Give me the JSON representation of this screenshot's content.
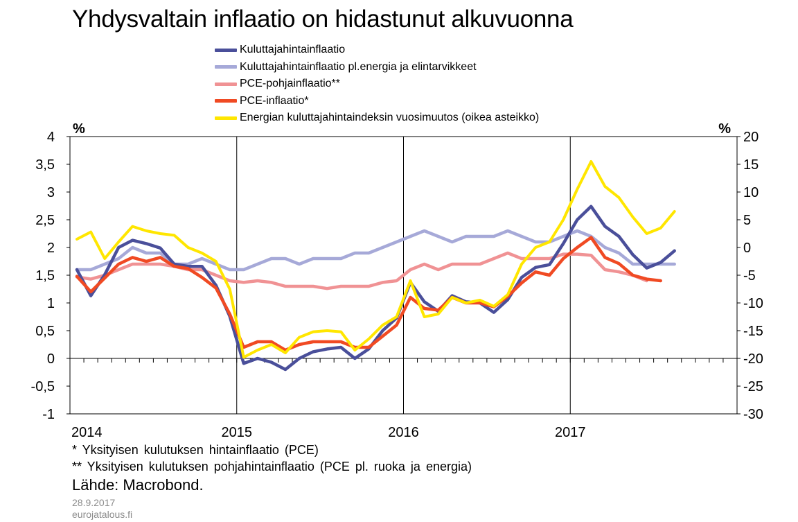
{
  "chart_data": {
    "type": "line",
    "title": "Yhdysvaltain inflaatio on hidastunut alkuvuonna",
    "left_unit": "%",
    "right_unit": "%",
    "left_ylim": [
      -1,
      4
    ],
    "right_ylim": [
      -30,
      20
    ],
    "left_yticks": [
      "-1",
      "-0,5",
      "0",
      "0,5",
      "1",
      "1,5",
      "2",
      "2,5",
      "3",
      "3,5",
      "4"
    ],
    "right_yticks": [
      "-30",
      "-25",
      "-20",
      "-15",
      "-10",
      "-5",
      "0",
      "5",
      "10",
      "15",
      "20"
    ],
    "x_labels": [
      "2014",
      "2015",
      "2016",
      "2017"
    ],
    "x_range": [
      "2014-01",
      "2017-12"
    ],
    "grid": "vertical at year boundaries",
    "series": [
      {
        "name": "Kuluttajahintainflaatio",
        "color": "#4a4f9a",
        "axis": "left",
        "start": "2014-01",
        "values": [
          1.6,
          1.13,
          1.51,
          2.0,
          2.13,
          2.07,
          1.99,
          1.7,
          1.66,
          1.66,
          1.32,
          0.76,
          -0.09,
          0.0,
          -0.07,
          -0.2,
          0.0,
          0.12,
          0.17,
          0.2,
          0.0,
          0.17,
          0.5,
          0.73,
          1.37,
          1.02,
          0.85,
          1.13,
          1.02,
          1.0,
          0.83,
          1.06,
          1.46,
          1.64,
          1.69,
          2.07,
          2.5,
          2.74,
          2.38,
          2.2,
          1.87,
          1.63,
          1.73,
          1.94
        ]
      },
      {
        "name": "Kuluttajahintainflaatio pl.energia ja elintarvikkeet",
        "color": "#a6a9d8",
        "axis": "left",
        "start": "2014-01",
        "values": [
          1.6,
          1.6,
          1.7,
          1.8,
          2.0,
          1.9,
          1.9,
          1.7,
          1.7,
          1.8,
          1.7,
          1.6,
          1.6,
          1.7,
          1.8,
          1.8,
          1.7,
          1.8,
          1.8,
          1.8,
          1.9,
          1.9,
          2.0,
          2.1,
          2.2,
          2.3,
          2.2,
          2.1,
          2.2,
          2.2,
          2.2,
          2.3,
          2.2,
          2.1,
          2.1,
          2.2,
          2.3,
          2.2,
          2.0,
          1.9,
          1.7,
          1.7,
          1.7,
          1.7
        ]
      },
      {
        "name": "PCE-pohjainflaatio**",
        "color": "#f09294",
        "axis": "left",
        "start": "2014-01",
        "values": [
          1.47,
          1.43,
          1.5,
          1.6,
          1.7,
          1.7,
          1.7,
          1.66,
          1.6,
          1.6,
          1.5,
          1.4,
          1.37,
          1.4,
          1.37,
          1.3,
          1.3,
          1.3,
          1.26,
          1.3,
          1.3,
          1.3,
          1.37,
          1.4,
          1.6,
          1.7,
          1.6,
          1.7,
          1.7,
          1.7,
          1.8,
          1.9,
          1.8,
          1.8,
          1.8,
          1.88,
          1.88,
          1.86,
          1.6,
          1.56,
          1.5,
          1.4
        ]
      },
      {
        "name": "PCE-inflaatio*",
        "color": "#f04a23",
        "axis": "left",
        "start": "2014-01",
        "values": [
          1.48,
          1.2,
          1.45,
          1.7,
          1.82,
          1.75,
          1.82,
          1.66,
          1.62,
          1.46,
          1.27,
          0.8,
          0.2,
          0.3,
          0.3,
          0.15,
          0.25,
          0.3,
          0.3,
          0.3,
          0.2,
          0.2,
          0.4,
          0.6,
          1.1,
          0.9,
          0.87,
          1.1,
          1.0,
          1.0,
          0.93,
          1.12,
          1.36,
          1.56,
          1.5,
          1.8,
          2.0,
          2.18,
          1.82,
          1.71,
          1.5,
          1.43,
          1.4
        ]
      },
      {
        "name": "Energian kuluttajahintaindeksin vuosimuutos (oikea asteikko)",
        "color": "#ffe600",
        "axis": "right",
        "start": "2014-01",
        "values": [
          1.5,
          2.8,
          -2.0,
          1.0,
          3.8,
          3.0,
          2.5,
          2.2,
          0.0,
          -1.0,
          -2.5,
          -7.5,
          -19.8,
          -18.5,
          -17.5,
          -19.0,
          -16.2,
          -15.2,
          -15.0,
          -15.2,
          -18.5,
          -16.5,
          -14.0,
          -12.5,
          -6.0,
          -12.5,
          -12.0,
          -9.0,
          -10.0,
          -9.5,
          -10.6,
          -8.5,
          -3.0,
          0.0,
          1.0,
          5.0,
          10.5,
          15.5,
          11.0,
          9.0,
          5.5,
          2.5,
          3.5,
          6.5
        ]
      }
    ]
  },
  "notes": {
    "pce_footnote": "* Yksityisen kulutuksen hintainflaatio (PCE)",
    "core_pce_footnote": "** Yksityisen kulutuksen pohjahintainflaatio (PCE pl. ruoka ja energia)",
    "source": "Lähde: Macrobond.",
    "date": "28.9.2017",
    "site": "eurojatalous.fi"
  }
}
